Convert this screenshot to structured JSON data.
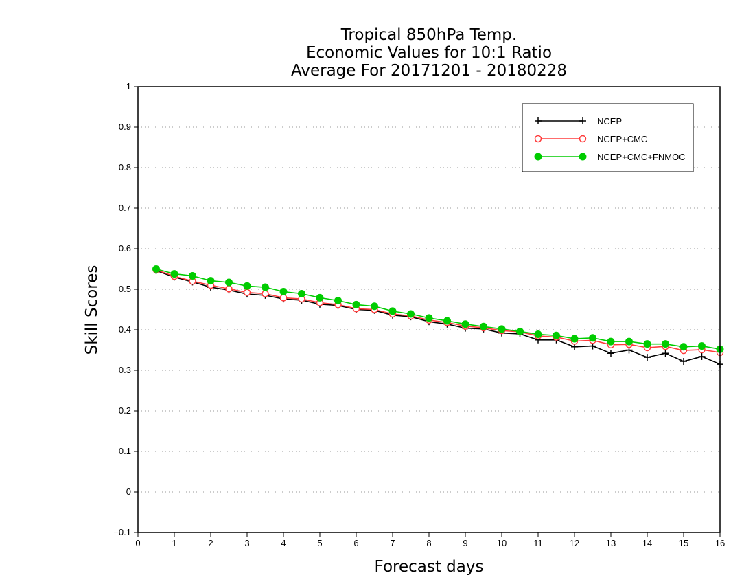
{
  "chart_data": {
    "type": "line",
    "title_lines": [
      "Tropical 850hPa Temp.",
      "Economic Values for 10:1 Ratio",
      "Average For 20171201 - 20180228"
    ],
    "xlabel": "Forecast days",
    "ylabel": "Skill Scores",
    "xlim": [
      0,
      16
    ],
    "ylim": [
      -0.1,
      1
    ],
    "xticks": [
      0,
      1,
      2,
      3,
      4,
      5,
      6,
      7,
      8,
      9,
      10,
      11,
      12,
      13,
      14,
      15,
      16
    ],
    "yticks": [
      -0.1,
      0,
      0.1,
      0.2,
      0.3,
      0.4,
      0.5,
      0.6,
      0.7,
      0.8,
      0.9,
      1
    ],
    "ytick_labels": [
      "−0.1",
      "0",
      "0.1",
      "0.2",
      "0.3",
      "0.4",
      "0.5",
      "0.6",
      "0.7",
      "0.8",
      "0.9",
      "1"
    ],
    "grid": "horizontal dotted",
    "legend_position": "top-right",
    "x": [
      0.5,
      1,
      1.5,
      2,
      2.5,
      3,
      3.5,
      4,
      4.5,
      5,
      5.5,
      6,
      6.5,
      7,
      7.5,
      8,
      8.5,
      9,
      9.5,
      10,
      10.5,
      11,
      11.5,
      12,
      12.5,
      13,
      13.5,
      14,
      14.5,
      15,
      15.5,
      16
    ],
    "series": [
      {
        "name": "NCEP",
        "color": "#000000",
        "marker": "plus",
        "values": [
          0.546,
          0.53,
          0.518,
          0.505,
          0.498,
          0.488,
          0.485,
          0.476,
          0.473,
          0.463,
          0.46,
          0.45,
          0.448,
          0.436,
          0.432,
          0.42,
          0.414,
          0.404,
          0.402,
          0.392,
          0.39,
          0.375,
          0.375,
          0.358,
          0.36,
          0.342,
          0.35,
          0.332,
          0.342,
          0.322,
          0.334,
          0.315
        ]
      },
      {
        "name": "NCEP+CMC",
        "color": "#ff3b3b",
        "marker": "open-circle",
        "values": [
          0.548,
          0.532,
          0.52,
          0.51,
          0.501,
          0.492,
          0.489,
          0.479,
          0.476,
          0.467,
          0.462,
          0.452,
          0.45,
          0.439,
          0.434,
          0.424,
          0.418,
          0.409,
          0.405,
          0.398,
          0.395,
          0.385,
          0.382,
          0.372,
          0.374,
          0.363,
          0.364,
          0.356,
          0.359,
          0.349,
          0.351,
          0.344
        ]
      },
      {
        "name": "NCEP+CMC+FNMOC",
        "color": "#00cc00",
        "marker": "filled-circle",
        "values": [
          0.55,
          0.538,
          0.533,
          0.521,
          0.517,
          0.508,
          0.505,
          0.494,
          0.489,
          0.479,
          0.472,
          0.462,
          0.458,
          0.446,
          0.439,
          0.429,
          0.422,
          0.414,
          0.408,
          0.402,
          0.396,
          0.389,
          0.386,
          0.378,
          0.38,
          0.371,
          0.371,
          0.365,
          0.365,
          0.358,
          0.36,
          0.352
        ]
      }
    ]
  }
}
